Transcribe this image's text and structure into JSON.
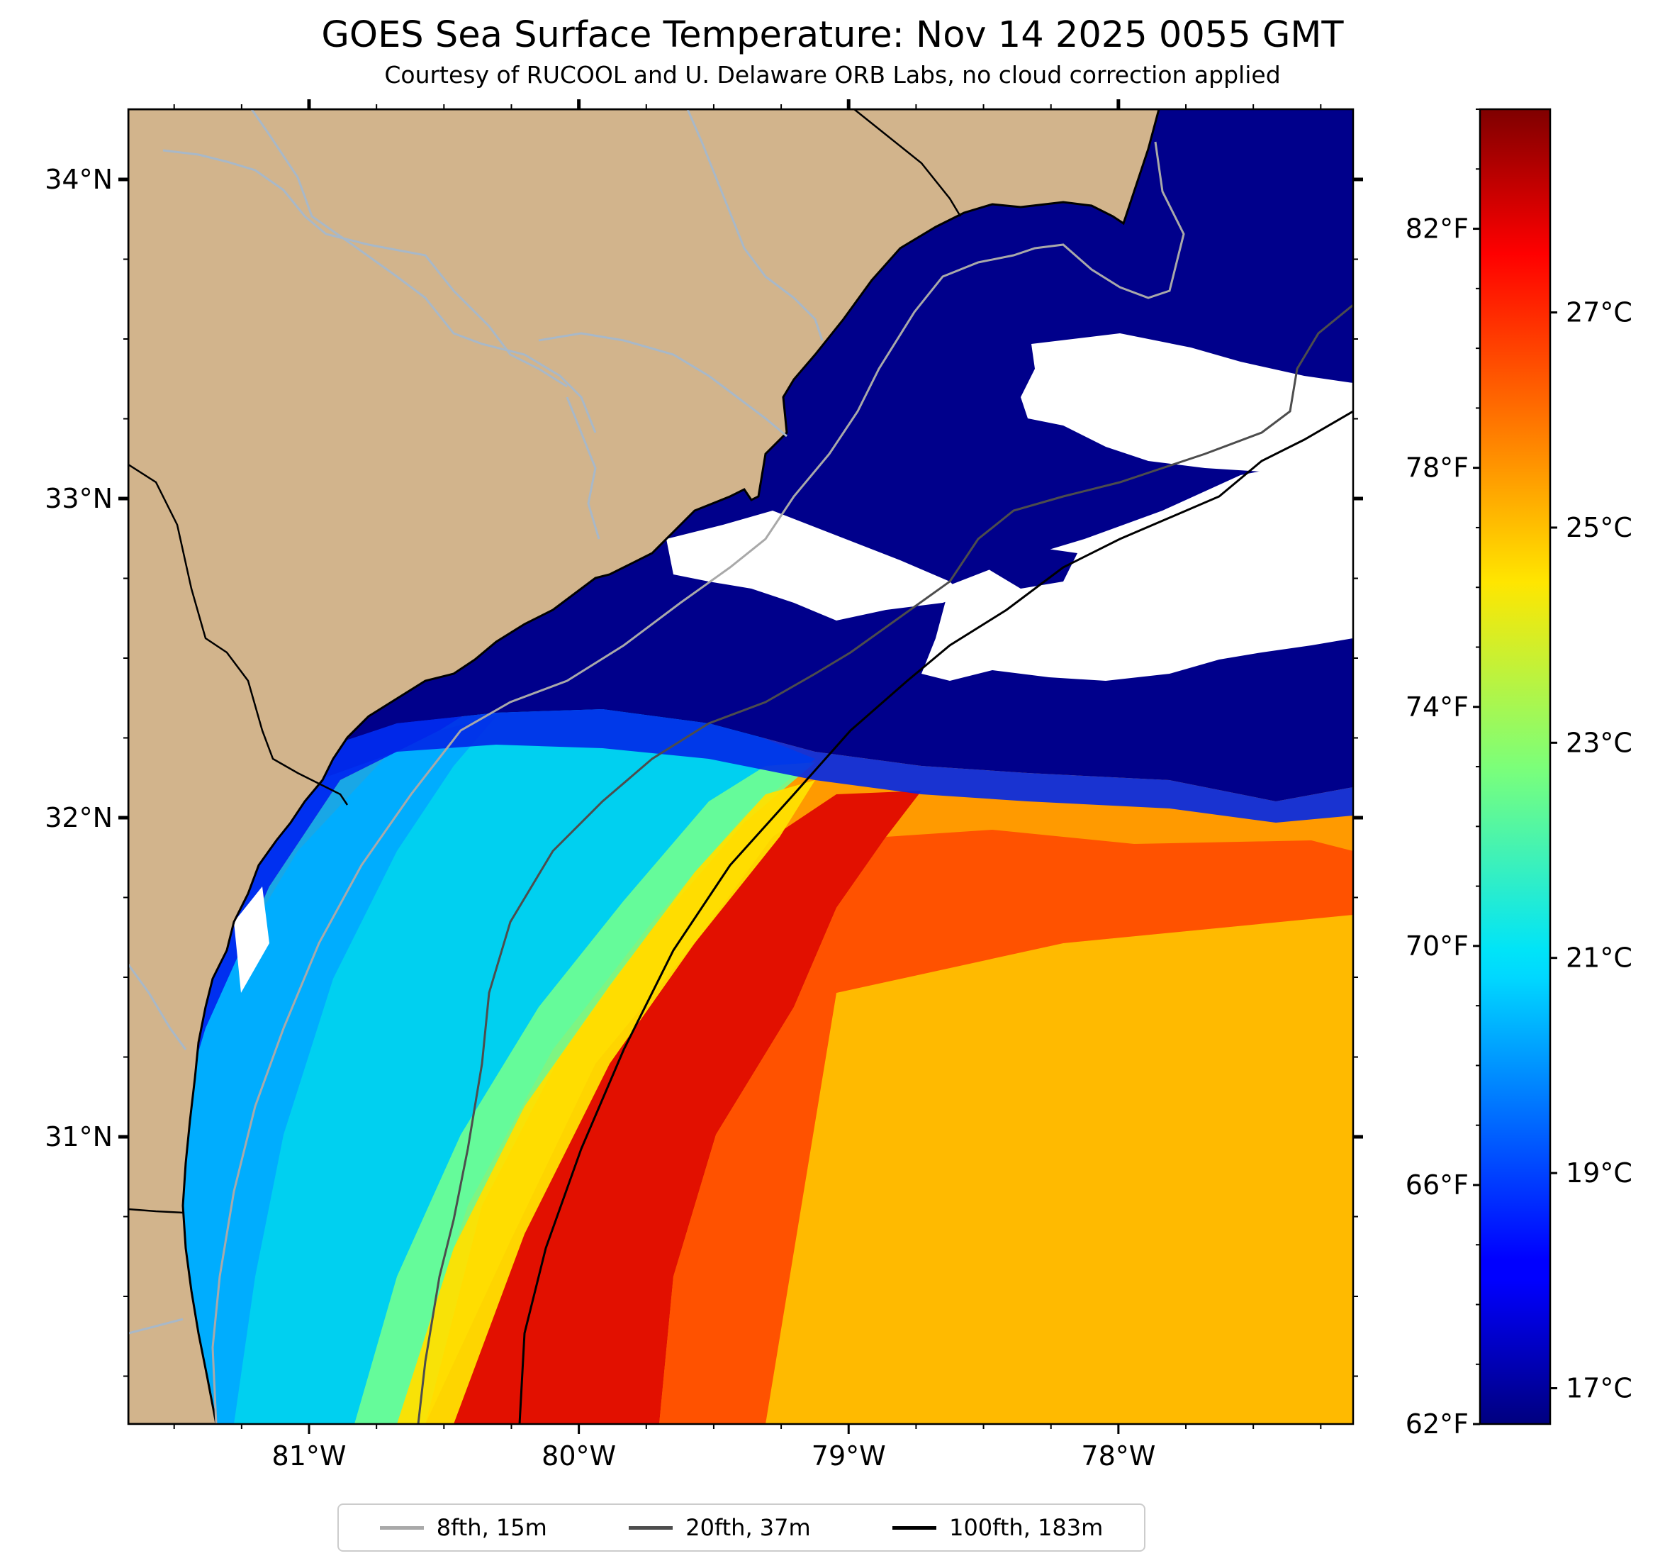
{
  "title": "GOES Sea Surface Temperature: Nov 14 2025 0055 GMT",
  "subtitle": "Courtesy of RUCOOL and U. Delaware ORB Labs, no cloud correction applied",
  "map": {
    "lon_range": [
      -81.67,
      -77.13
    ],
    "lat_range": [
      30.1,
      34.22
    ],
    "lon_ticks": [
      {
        "value": -81,
        "label": "81°W"
      },
      {
        "value": -80,
        "label": "80°W"
      },
      {
        "value": -79,
        "label": "79°W"
      },
      {
        "value": -78,
        "label": "78°W"
      }
    ],
    "lat_ticks": [
      {
        "value": 34,
        "label": "34°N"
      },
      {
        "value": 33,
        "label": "33°N"
      },
      {
        "value": 32,
        "label": "32°N"
      },
      {
        "value": 31,
        "label": "31°N"
      }
    ],
    "colors": {
      "land": "#D2B48C",
      "cold_water": "#00008B",
      "cloud_mask": "#FFFFFF",
      "rivers": "#A8B8C8",
      "coastline": "#000000"
    }
  },
  "colorbar": {
    "colormap": "jet",
    "celsius_range": [
      16.667,
      28.889
    ],
    "fahrenheit_ticks": [
      {
        "value": 62,
        "label": "62°F"
      },
      {
        "value": 66,
        "label": "66°F"
      },
      {
        "value": 70,
        "label": "70°F"
      },
      {
        "value": 74,
        "label": "74°F"
      },
      {
        "value": 78,
        "label": "78°F"
      },
      {
        "value": 82,
        "label": "82°F"
      }
    ],
    "celsius_ticks": [
      {
        "value": 17,
        "label": "17°C"
      },
      {
        "value": 19,
        "label": "19°C"
      },
      {
        "value": 21,
        "label": "21°C"
      },
      {
        "value": 23,
        "label": "23°C"
      },
      {
        "value": 25,
        "label": "25°C"
      },
      {
        "value": 27,
        "label": "27°C"
      }
    ]
  },
  "legend": {
    "items": [
      {
        "label": "8fth, 15m",
        "color": "#A9A9A9"
      },
      {
        "label": "20fth, 37m",
        "color": "#4D4D4D"
      },
      {
        "label": "100fth, 183m",
        "color": "#000000"
      }
    ]
  }
}
